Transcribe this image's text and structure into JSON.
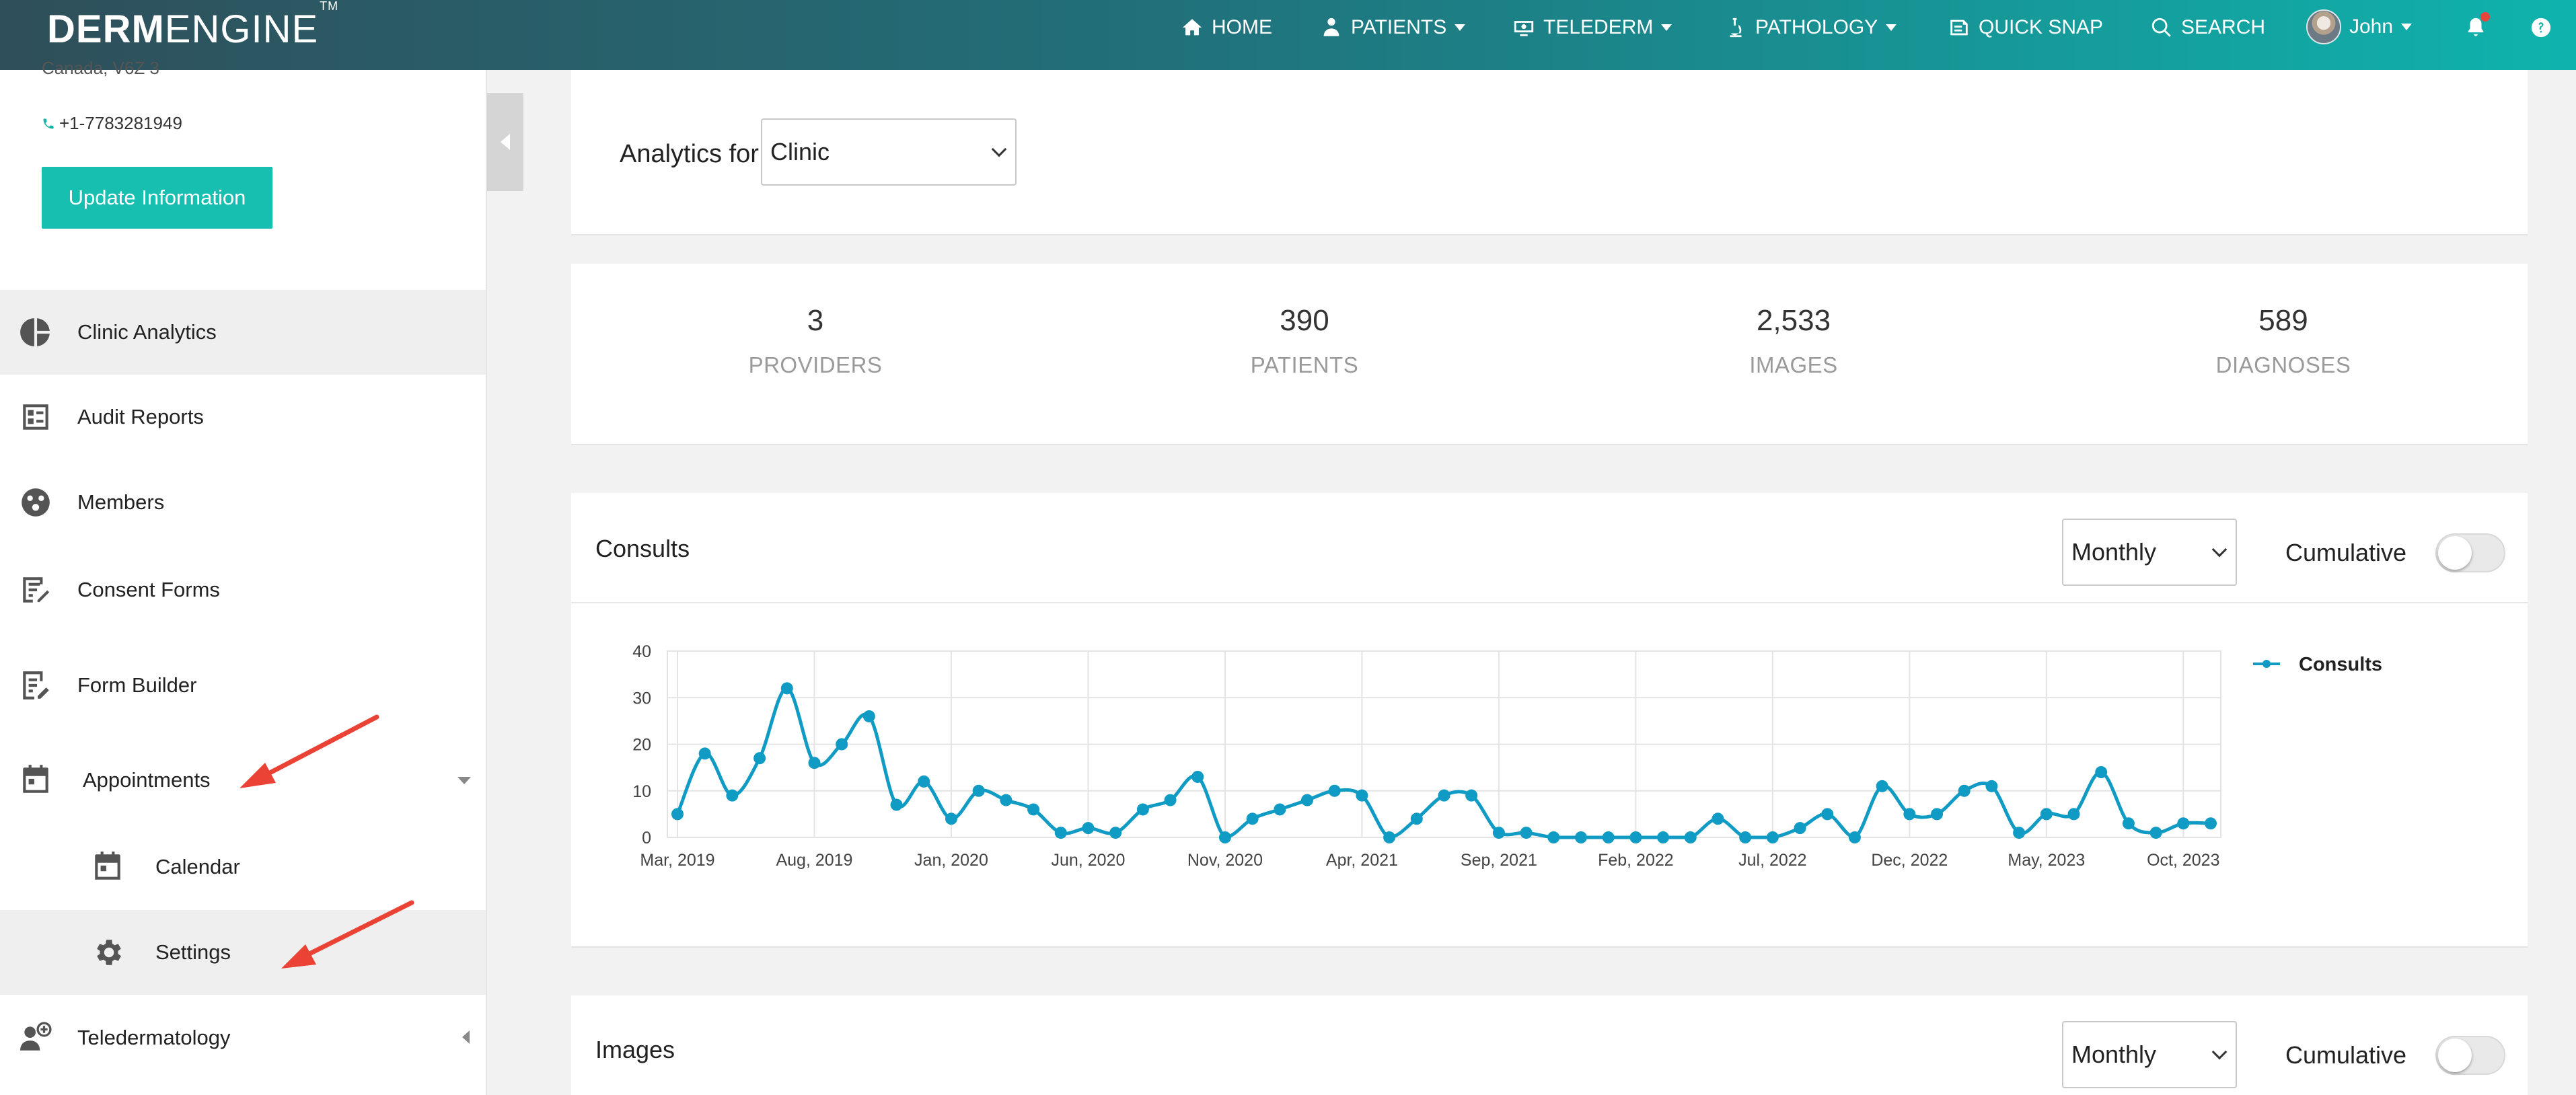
{
  "nav": {
    "logo_bold": "DERM",
    "logo_light": "ENGINE",
    "logo_tm": "TM",
    "home": "HOME",
    "patients": "PATIENTS",
    "telederm": "TELEDERM",
    "pathology": "PATHOLOGY",
    "quick_snap": "QUICK SNAP",
    "search": "SEARCH",
    "user": "John"
  },
  "sidebar": {
    "address_cut": "Canada, V6Z 3",
    "phone": "+1-7783281949",
    "update_button": "Update Information",
    "items": [
      {
        "label": "Clinic Analytics",
        "icon": "pie-chart-icon"
      },
      {
        "label": "Audit Reports",
        "icon": "report-list-icon"
      },
      {
        "label": "Members",
        "icon": "members-icon"
      },
      {
        "label": "Consent Forms",
        "icon": "consent-form-icon"
      },
      {
        "label": "Form Builder",
        "icon": "form-builder-icon"
      },
      {
        "label": "Appointments",
        "icon": "calendar-icon"
      },
      {
        "label": "Calendar",
        "icon": "calendar-icon"
      },
      {
        "label": "Settings",
        "icon": "gear-icon"
      },
      {
        "label": "Teledermatology",
        "icon": "teledermatology-icon"
      }
    ]
  },
  "analytics": {
    "label": "Analytics for",
    "selected": "Clinic"
  },
  "stats": [
    {
      "value": "3",
      "caption": "PROVIDERS"
    },
    {
      "value": "390",
      "caption": "PATIENTS"
    },
    {
      "value": "2,533",
      "caption": "IMAGES"
    },
    {
      "value": "589",
      "caption": "DIAGNOSES"
    }
  ],
  "consults_card": {
    "title": "Consults",
    "period": "Monthly",
    "cumulative_label": "Cumulative",
    "cumulative_on": false
  },
  "images_card": {
    "title": "Images",
    "period": "Monthly",
    "cumulative_label": "Cumulative",
    "cumulative_on": false
  },
  "colors": {
    "accent": "#16bfb0",
    "series": "#0f9bc3"
  },
  "chart_data": {
    "type": "line",
    "title": "",
    "xlabel": "",
    "ylabel": "",
    "ylim": [
      0,
      40
    ],
    "y_ticks": [
      0,
      10,
      20,
      30,
      40
    ],
    "grid": true,
    "legend": "top-right",
    "x_tick_labels": [
      "Mar, 2019",
      "Aug, 2019",
      "Jan, 2020",
      "Jun, 2020",
      "Nov, 2020",
      "Apr, 2021",
      "Sep, 2021",
      "Feb, 2022",
      "Jul, 2022",
      "Dec, 2022",
      "May, 2023",
      "Oct, 2023"
    ],
    "x_tick_every": 5,
    "series": [
      {
        "name": "Consults",
        "values": [
          5,
          18,
          9,
          17,
          32,
          16,
          20,
          26,
          7,
          12,
          4,
          10,
          8,
          6,
          1,
          2,
          1,
          6,
          8,
          13,
          0,
          4,
          6,
          8,
          10,
          9,
          0,
          4,
          9,
          9,
          1,
          1,
          0,
          0,
          0,
          0,
          0,
          0,
          4,
          0,
          0,
          2,
          5,
          0,
          11,
          5,
          5,
          10,
          11,
          1,
          5,
          5,
          14,
          3,
          1,
          3,
          3
        ]
      }
    ]
  }
}
